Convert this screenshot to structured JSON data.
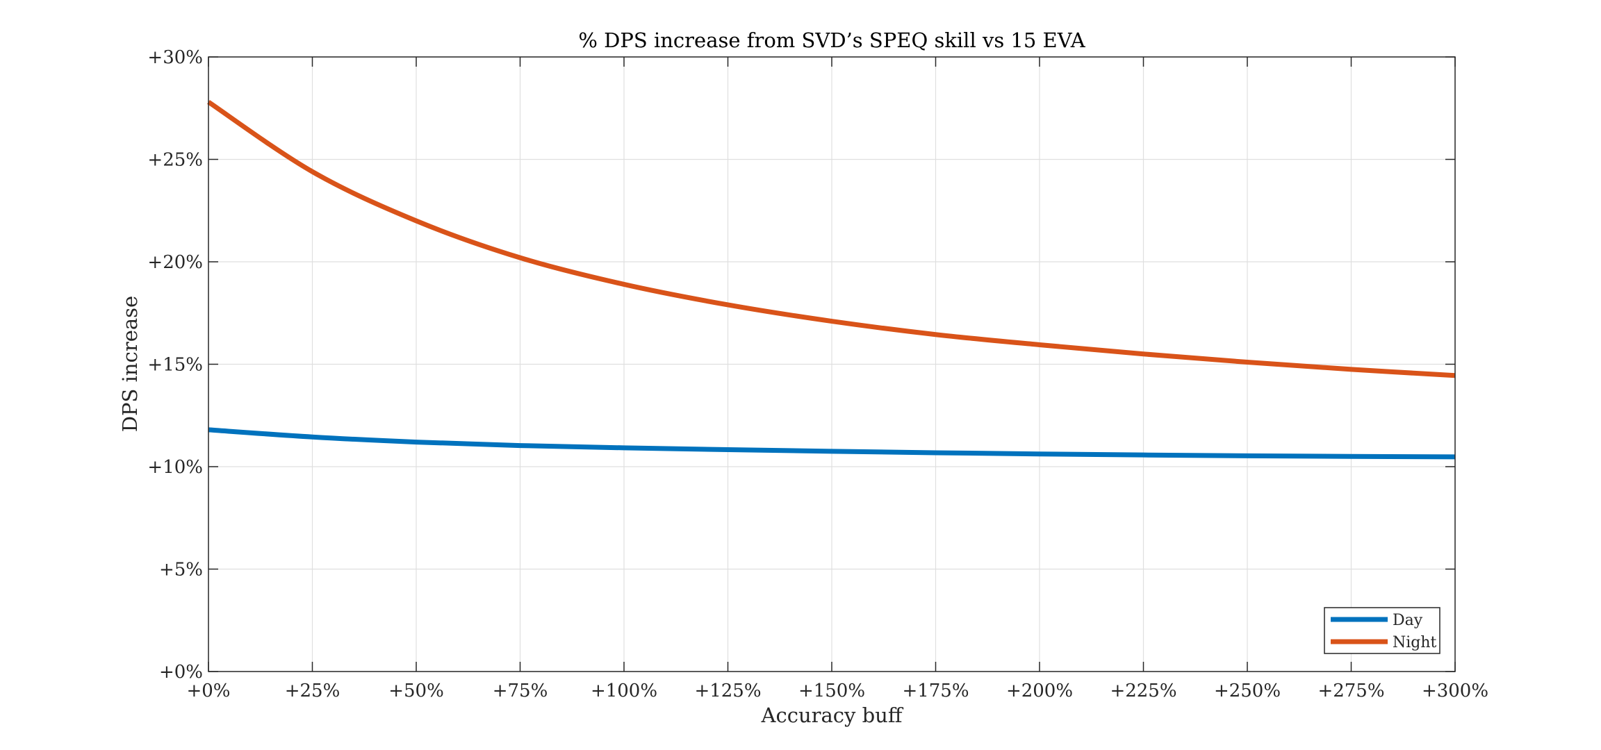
{
  "chart_data": {
    "type": "line",
    "title": "% DPS increase from SVD’s SPEQ skill vs 15 EVA",
    "xlabel": "Accuracy buff",
    "ylabel": "DPS increase",
    "xlim": [
      0,
      300
    ],
    "ylim": [
      0,
      30
    ],
    "grid": true,
    "legend_position": "bottom-right",
    "x_ticks": [
      0,
      25,
      50,
      75,
      100,
      125,
      150,
      175,
      200,
      225,
      250,
      275,
      300
    ],
    "x_tick_labels": [
      "+0%",
      "+25%",
      "+50%",
      "+75%",
      "+100%",
      "+125%",
      "+150%",
      "+175%",
      "+200%",
      "+225%",
      "+250%",
      "+275%",
      "+300%"
    ],
    "y_ticks": [
      0,
      5,
      10,
      15,
      20,
      25,
      30
    ],
    "y_tick_labels": [
      "+0%",
      "+5%",
      "+10%",
      "+15%",
      "+20%",
      "+25%",
      "+30%"
    ],
    "x": [
      0,
      25,
      50,
      75,
      100,
      125,
      150,
      175,
      200,
      225,
      250,
      275,
      300
    ],
    "series": [
      {
        "name": "Day",
        "color": "#0072BD",
        "values": [
          11.8,
          11.45,
          11.2,
          11.03,
          10.92,
          10.83,
          10.75,
          10.68,
          10.62,
          10.57,
          10.53,
          10.5,
          10.48
        ]
      },
      {
        "name": "Night",
        "color": "#D95319",
        "values": [
          27.8,
          24.4,
          22.0,
          20.2,
          18.9,
          17.9,
          17.1,
          16.45,
          15.95,
          15.5,
          15.1,
          14.75,
          14.45
        ]
      }
    ]
  }
}
